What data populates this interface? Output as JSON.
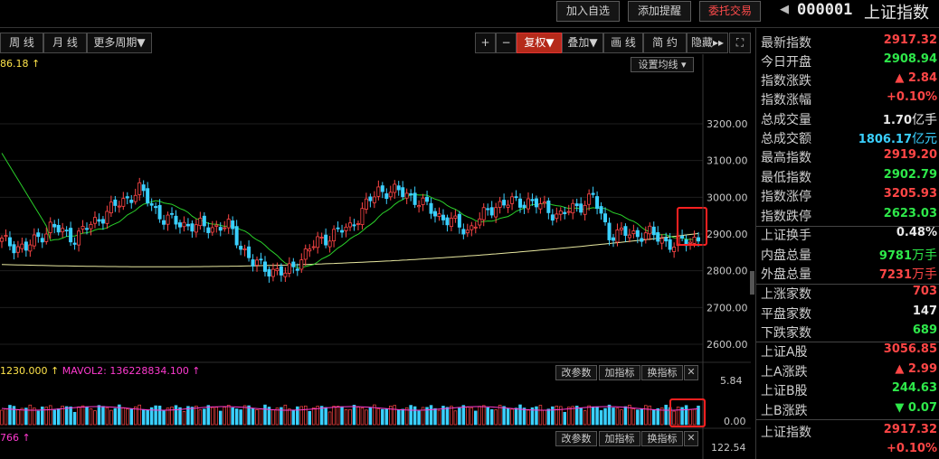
{
  "topbar": {
    "add_watchlist": "加入自选",
    "add_alert": "添加提醒",
    "entrust_trade": "委托交易",
    "prev_arrow": "◀",
    "code": "000001",
    "name": "上证指数"
  },
  "toolbar": {
    "week": "周 线",
    "month": "月 线",
    "more_period": "更多周期▼",
    "zoom_in": "+",
    "zoom_out": "−",
    "adjust": "复权▼",
    "overlay": "叠加▼",
    "draw_line": "画 线",
    "simple": "简 约",
    "hide": "隐藏▸▸",
    "fullscreen": "⛶"
  },
  "chart": {
    "ma_text": "86.18 ↑",
    "set_ma": "设置均线 ▾",
    "y_ticks": [
      "3200.00",
      "3100.00",
      "3000.00",
      "2900.00",
      "2800.00",
      "2700.00",
      "2600.00"
    ],
    "volume_label_a": "1230.000 ↑",
    "volume_label_b": "MAVOL2: 136228834.100 ↑",
    "vol_ticks": [
      "5.84",
      "0.00"
    ],
    "sub_label": "766 ↑",
    "sub_tick": "122.54",
    "change_param": "改参数",
    "add_indicator": "加指标",
    "switch_indicator": "换指标",
    "close": "✕"
  },
  "quote": {
    "latest_label": "最新指数",
    "latest": "2917.32",
    "open_label": "今日开盘",
    "open": "2908.94",
    "change_label": "指数涨跌",
    "change": "▲ 2.84",
    "pct_label": "指数涨幅",
    "pct": "+0.10%",
    "vol_label": "总成交量",
    "vol_num": "1.70",
    "vol_unit": "亿手",
    "amt_label": "总成交额",
    "amt_num": "1806.17",
    "amt_unit": "亿元",
    "high_label": "最高指数",
    "high": "2919.20",
    "low_label": "最低指数",
    "low": "2902.79",
    "limit_up_label": "指数涨停",
    "limit_up": "3205.93",
    "limit_down_label": "指数跌停",
    "limit_down": "2623.03",
    "turnover_label": "上证换手",
    "turnover": "0.48%",
    "inner_label": "内盘总量",
    "inner_num": "9781",
    "inner_unit": "万手",
    "outer_label": "外盘总量",
    "outer_num": "7231",
    "outer_unit": "万手",
    "up_count_label": "上涨家数",
    "up_count": "703",
    "flat_count_label": "平盘家数",
    "flat_count": "147",
    "down_count_label": "下跌家数",
    "down_count": "689",
    "sha_label": "上证A股",
    "sha": "3056.85",
    "sha_chg_label": "上A涨跌",
    "sha_chg": "▲ 2.99",
    "shb_label": "上证B股",
    "shb": "244.63",
    "shb_chg_label": "上B涨跌",
    "shb_chg": "▼ 0.07",
    "idx_label": "上证指数",
    "idx": "2917.32",
    "idx_pct": "+0.10%"
  },
  "colors": {
    "up": "#ff4646",
    "down": "#2ee84a",
    "cyan": "#3ad0ff",
    "ma_short": "#2ad02a",
    "ma_long": "#e8e8a0",
    "highlight": "#ff2020"
  }
}
